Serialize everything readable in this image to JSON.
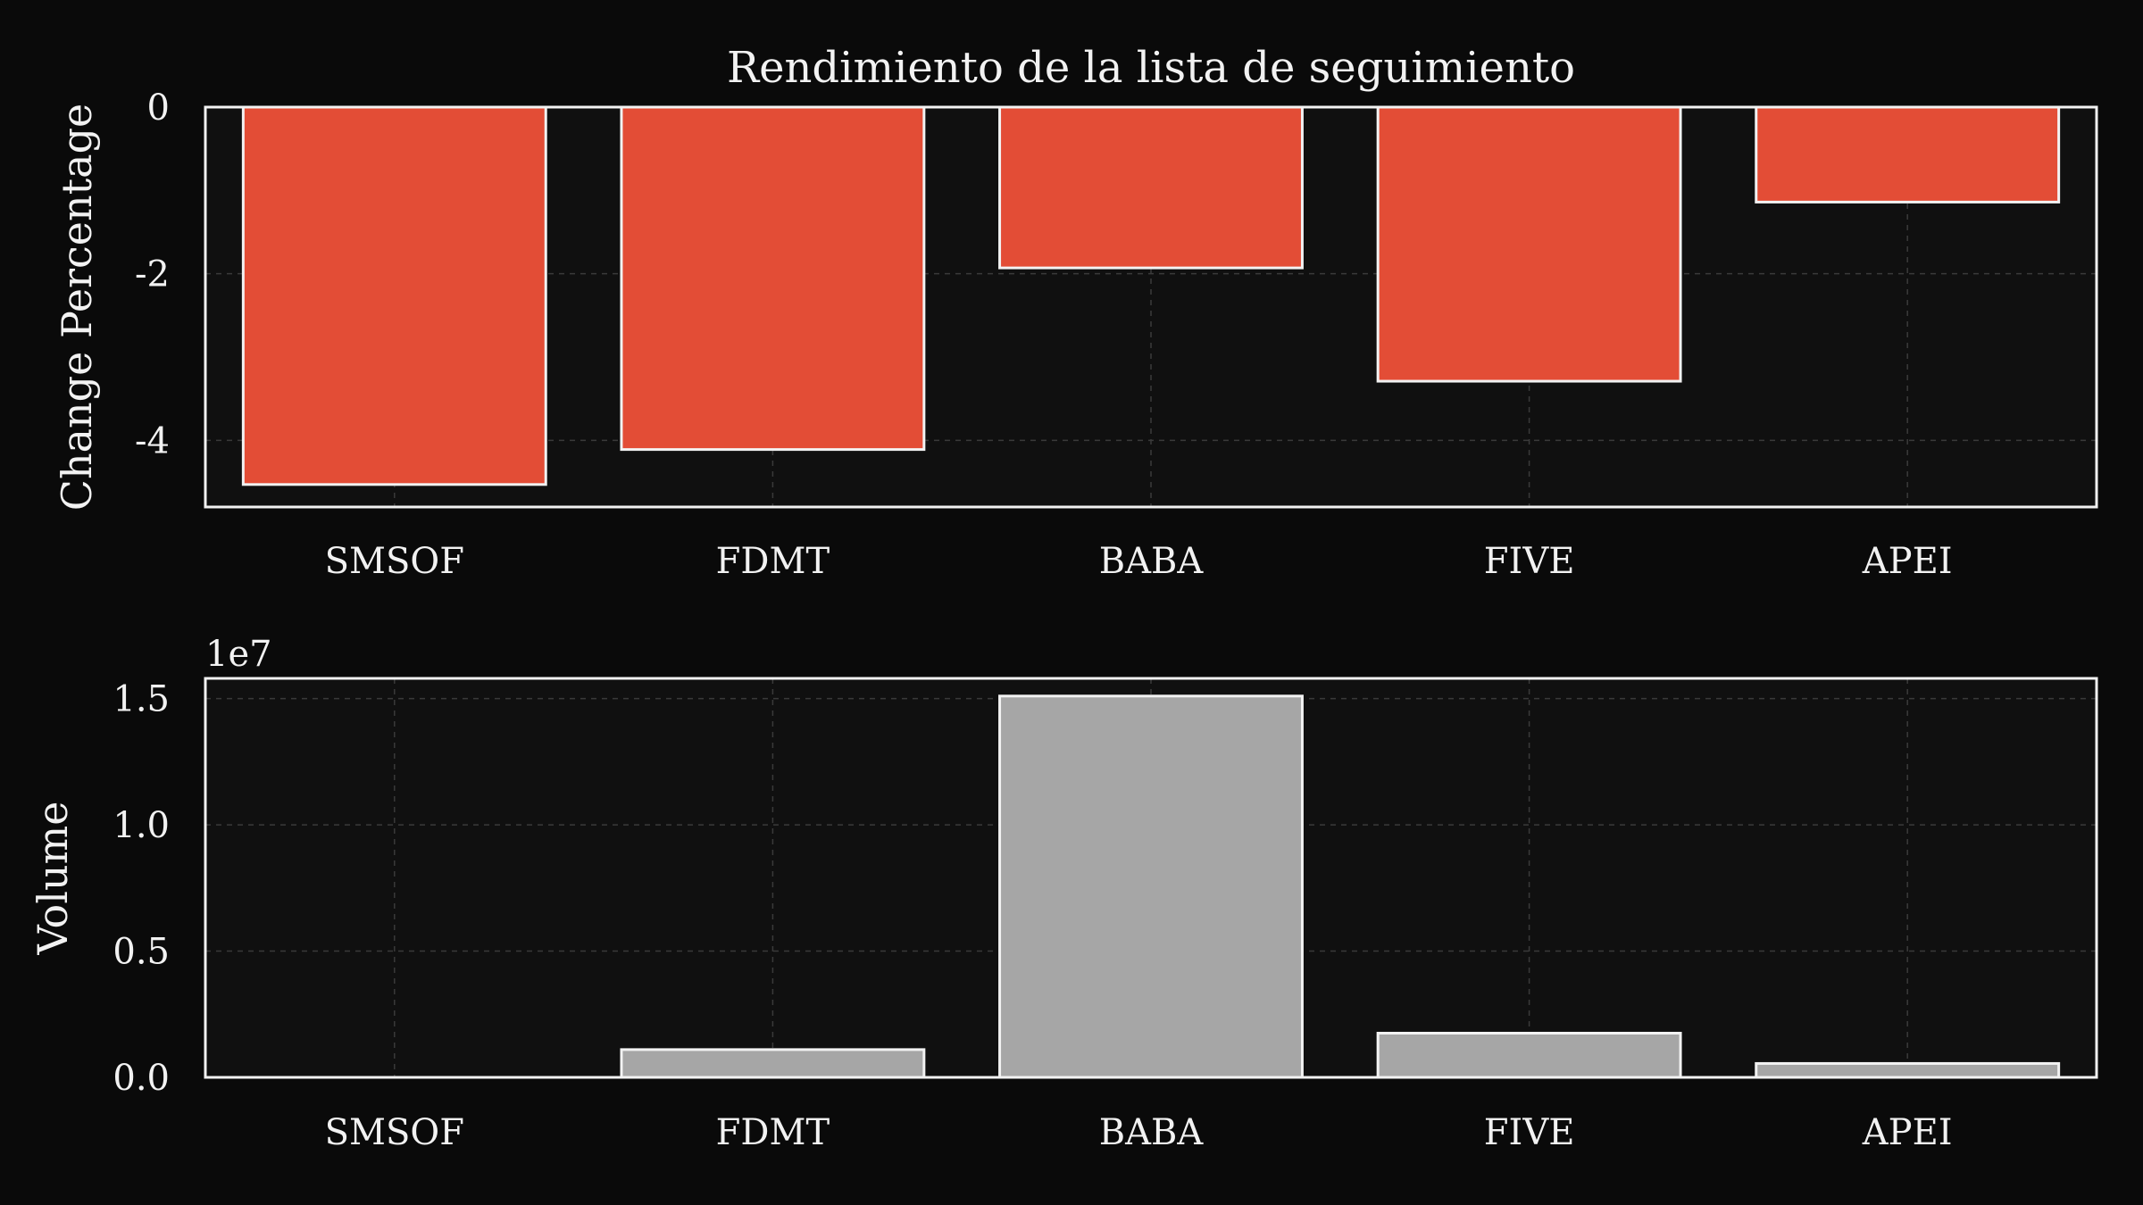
{
  "chart_data": [
    {
      "type": "bar",
      "title": "Rendimiento de la lista de seguimiento",
      "xlabel": "",
      "ylabel": "Change Percentage",
      "categories": [
        "SMSOF",
        "FDMT",
        "BABA",
        "FIVE",
        "APEI"
      ],
      "values": [
        -4.53,
        -4.11,
        -1.93,
        -3.29,
        -1.14
      ],
      "ylim": [
        -4.8,
        0
      ],
      "yticks": [
        0,
        -2,
        -4
      ],
      "ytick_labels": [
        "0",
        "-2",
        "-4"
      ],
      "grid": true,
      "bar_color": "#e34d36"
    },
    {
      "type": "bar",
      "title": "",
      "xlabel": "",
      "ylabel": "Volume",
      "offset_label": "1e7",
      "categories": [
        "SMSOF",
        "FDMT",
        "BABA",
        "FIVE",
        "APEI"
      ],
      "values": [
        0,
        1100000,
        15100000,
        1750000,
        550000
      ],
      "ylim": [
        0,
        15800000
      ],
      "yticks": [
        0,
        5000000,
        10000000,
        15000000
      ],
      "ytick_labels": [
        "0.0",
        "0.5",
        "1.0",
        "1.5"
      ],
      "grid": true,
      "bar_color": "#a6a6a6"
    }
  ],
  "colors": {
    "background": "#0a0a0a",
    "plot_background": "#101010",
    "foreground": "#f2f2f2",
    "grid": "#3a3a3a"
  }
}
